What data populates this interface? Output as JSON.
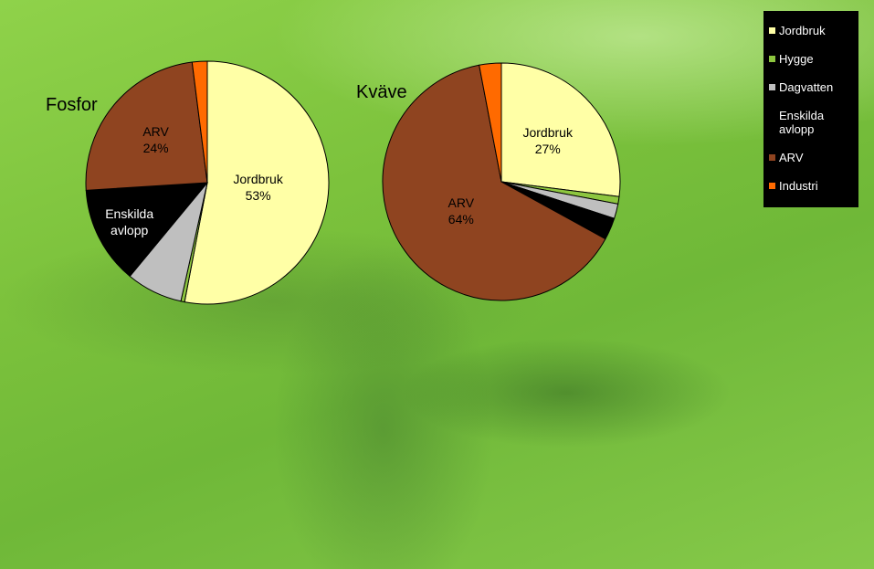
{
  "chart_data": [
    {
      "type": "pie",
      "title": "Fosfor",
      "categories": [
        "Jordbruk",
        "Hygge",
        "Dagvatten",
        "Enskilda avlopp",
        "ARV",
        "Industri"
      ],
      "values": [
        53,
        0.5,
        7.5,
        13,
        24,
        2
      ],
      "value_labels": [
        "53%",
        null,
        null,
        null,
        "24%",
        null
      ],
      "name_labels": [
        true,
        false,
        false,
        true,
        true,
        false
      ],
      "colors": [
        "#ffffa6",
        "#8dc63f",
        "#bfbfbf",
        "#000000",
        "#8f4420",
        "#ff6a00"
      ]
    },
    {
      "type": "pie",
      "title": "Kväve",
      "categories": [
        "Jordbruk",
        "Hygge",
        "Dagvatten",
        "Enskilda avlopp",
        "ARV",
        "Industri"
      ],
      "values": [
        27,
        1,
        2,
        3,
        64,
        3
      ],
      "value_labels": [
        "27%",
        null,
        null,
        null,
        "64%",
        null
      ],
      "name_labels": [
        true,
        false,
        false,
        false,
        true,
        false
      ],
      "colors": [
        "#ffffa6",
        "#8dc63f",
        "#bfbfbf",
        "#000000",
        "#8f4420",
        "#ff6a00"
      ]
    }
  ],
  "legend": {
    "position": "top-right"
  }
}
